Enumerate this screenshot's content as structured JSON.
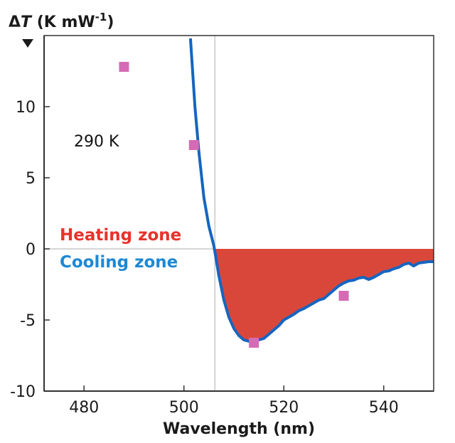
{
  "chart_data": {
    "type": "line",
    "ylabel": "ΔT (K mW⁻¹)",
    "ylabel_delta": "Δ",
    "ylabel_var": "T",
    "ylabel_unit_base": " (K mW",
    "ylabel_unit_exp": "-1",
    "ylabel_unit_close": ")",
    "xlabel": "Wavelength (nm)",
    "xlim": [
      472,
      550
    ],
    "ylim": [
      -10,
      15
    ],
    "x_ticks": [
      480,
      500,
      520,
      540
    ],
    "x_tick_labels": [
      "480",
      "500",
      "520",
      "540"
    ],
    "y_ticks": [
      -10,
      -5,
      0,
      5,
      10
    ],
    "y_tick_labels": [
      "-10",
      "-5",
      "0",
      "5",
      "10"
    ],
    "grid": false,
    "vertical_marker_x": 506.2,
    "temperature_label": "290 K",
    "heating_label": "Heating zone",
    "cooling_label": "Cooling zone",
    "colors": {
      "curve": "#1565c0",
      "fill": "#d9473b",
      "marker": "#d46bb4",
      "heating": "#e8322b",
      "cooling": "#1e88d2",
      "axis": "#333333",
      "marker_line": "#c8c8c8"
    },
    "series": [
      {
        "type": "line",
        "x": [
          501.3,
          502.2,
          503.0,
          504.0,
          505.0,
          506.0,
          507.0,
          508.0,
          509.0,
          510.0,
          511.0,
          512.0,
          513.0,
          514.0,
          515.0,
          516.0,
          517.0,
          518.0,
          519.0,
          520.0,
          521.0,
          522.0,
          523.0,
          524.0,
          525.0,
          526.0,
          527.0,
          528.0,
          529.0,
          530.0,
          531.0,
          532.0,
          533.0,
          534.0,
          535.0,
          536.0,
          537.0,
          538.0,
          539.0,
          540.0,
          541.0,
          542.0,
          543.0,
          544.0,
          545.0,
          546.0,
          547.0,
          548.0,
          549.0,
          550.0
        ],
        "y": [
          14.8,
          10.0,
          6.8,
          3.6,
          1.6,
          0.2,
          -1.9,
          -3.6,
          -4.8,
          -5.6,
          -6.1,
          -6.4,
          -6.5,
          -6.45,
          -6.4,
          -6.3,
          -6.0,
          -5.7,
          -5.4,
          -5.0,
          -4.8,
          -4.6,
          -4.35,
          -4.2,
          -4.0,
          -3.8,
          -3.6,
          -3.5,
          -3.2,
          -2.9,
          -2.6,
          -2.4,
          -2.25,
          -2.2,
          -2.05,
          -2.0,
          -2.15,
          -2.0,
          -1.8,
          -1.6,
          -1.55,
          -1.4,
          -1.3,
          -1.1,
          -1.0,
          -1.2,
          -1.0,
          -0.95,
          -0.9,
          -0.9
        ]
      },
      {
        "type": "scatter",
        "x": [
          488,
          502,
          514,
          532
        ],
        "y": [
          12.8,
          7.3,
          -6.6,
          -3.3
        ]
      }
    ]
  }
}
